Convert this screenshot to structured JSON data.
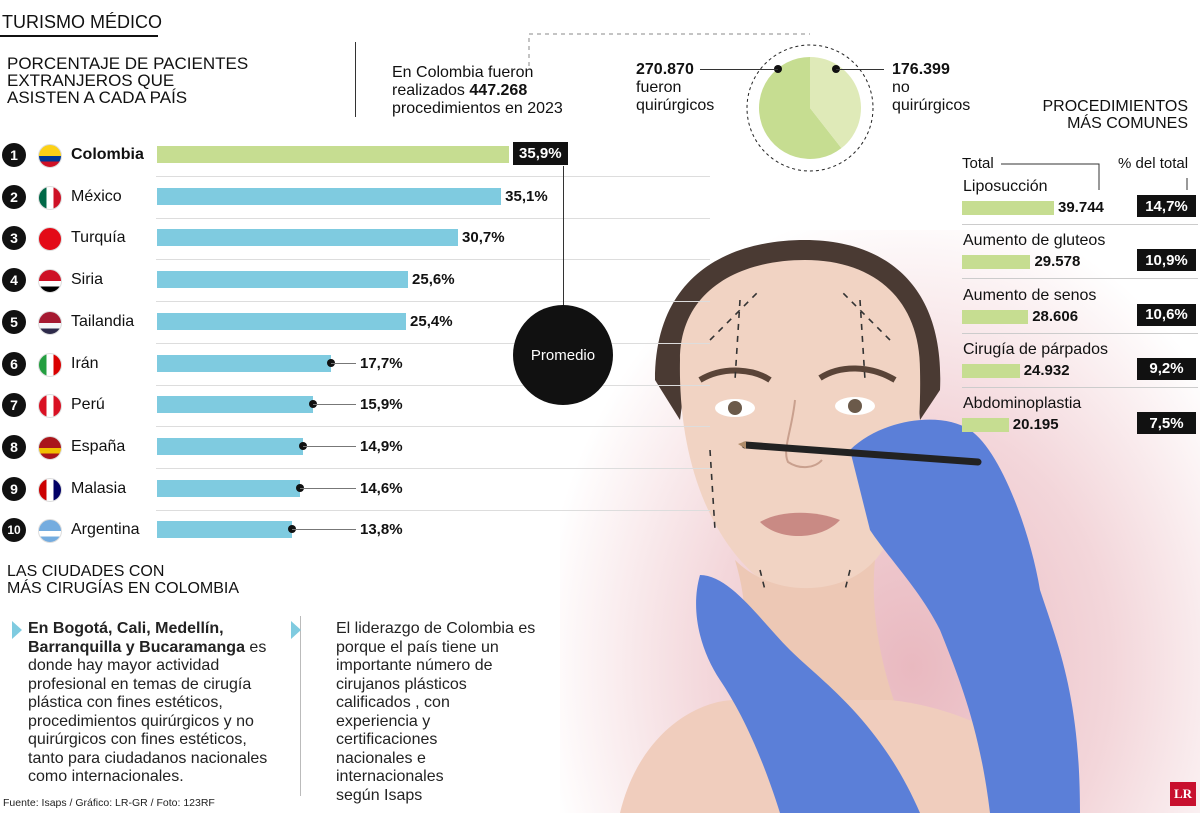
{
  "header": {
    "section_title": "TURISMO MÉDICO",
    "chart_title_lines": [
      "PORCENTAJE DE PACIENTES",
      "EXTRANJEROS QUE",
      "ASISTEN A CADA PAÍS"
    ]
  },
  "summary": {
    "line1": "En Colombia fueron",
    "line2_pre": "realizados",
    "line2_value": "447.268",
    "line3": "procedimientos en 2023"
  },
  "colors": {
    "colombia_bar": "#c6dd91",
    "bar": "#7fcbe0",
    "pie_quirurgicos": "#c6dd91",
    "pie_no_quirurgicos": "#dfeab8",
    "procedure_bar": "#c6dd91",
    "black": "#111111"
  },
  "chart_data": [
    {
      "type": "bar",
      "title": "PORCENTAJE DE PACIENTES EXTRANJEROS QUE ASISTEN A CADA PAÍS",
      "orientation": "horizontal",
      "categories": [
        "Colombia",
        "México",
        "Turquía",
        "Siria",
        "Tailandia",
        "Irán",
        "Perú",
        "España",
        "Malasia",
        "Argentina"
      ],
      "ranks": [
        "1",
        "2",
        "3",
        "4",
        "5",
        "6",
        "7",
        "8",
        "9",
        "10"
      ],
      "values": [
        35.9,
        35.1,
        30.7,
        25.6,
        25.4,
        17.7,
        15.9,
        14.9,
        14.6,
        13.8
      ],
      "value_labels": [
        "35,9%",
        "35,1%",
        "30,7%",
        "25,6%",
        "25,4%",
        "17,7%",
        "15,9%",
        "14,9%",
        "14,6%",
        "13,8%"
      ],
      "xlim": [
        0,
        36
      ],
      "annotation": "Promedio"
    },
    {
      "type": "pie",
      "labels": [
        "fueron quirúrgicos",
        "no quirúrgicos"
      ],
      "values": [
        270870,
        176399
      ],
      "value_labels": [
        "270.870",
        "176.399"
      ],
      "label_lines": [
        [
          "fueron",
          "quirúrgicos"
        ],
        [
          "no",
          "quirúrgicos"
        ]
      ]
    },
    {
      "type": "bar",
      "title": "PROCEDIMIENTOS MÁS COMUNES",
      "orientation": "horizontal",
      "column_headers": [
        "Total",
        "% del total"
      ],
      "categories": [
        "Liposucción",
        "Aumento de gluteos",
        "Aumento de senos",
        "Cirugía de párpados",
        "Abdominoplastia"
      ],
      "values": [
        39744,
        29578,
        28606,
        24932,
        20195
      ],
      "value_labels": [
        "39.744",
        "29.578",
        "28.606",
        "24.932",
        "20.195"
      ],
      "percent_labels": [
        "14,7%",
        "10,9%",
        "10,6%",
        "9,2%",
        "7,5%"
      ]
    }
  ],
  "cities": {
    "title_lines": [
      "LAS CIUDADES CON",
      "MÁS CIRUGÍAS EN COLOMBIA"
    ]
  },
  "notes": {
    "left_bold_lines": [
      "En Bogotá, Cali, Medellín,",
      "Barranquilla y Bucaramanga"
    ],
    "left_bold_suffix": " es",
    "left_lines": [
      "donde hay mayor actividad",
      "profesional en temas de cirugía",
      "plástica con fines estéticos,",
      "procedimientos quirúrgicos y no",
      "quirúrgicos con fines estéticos,",
      "tanto para ciudadanos nacionales",
      "como internacionales."
    ],
    "right_lines": [
      "El liderazgo de Colombia es",
      "porque el país tiene un",
      "importante número de",
      "cirujanos plásticos",
      "calificados , con",
      "experiencia y",
      "certificaciones",
      "nacionales e",
      "internacionales",
      "según Isaps"
    ]
  },
  "footer": {
    "source": "Fuente: Isaps / Gráfico: LR-GR / Foto: 123RF",
    "logo": "LR"
  }
}
